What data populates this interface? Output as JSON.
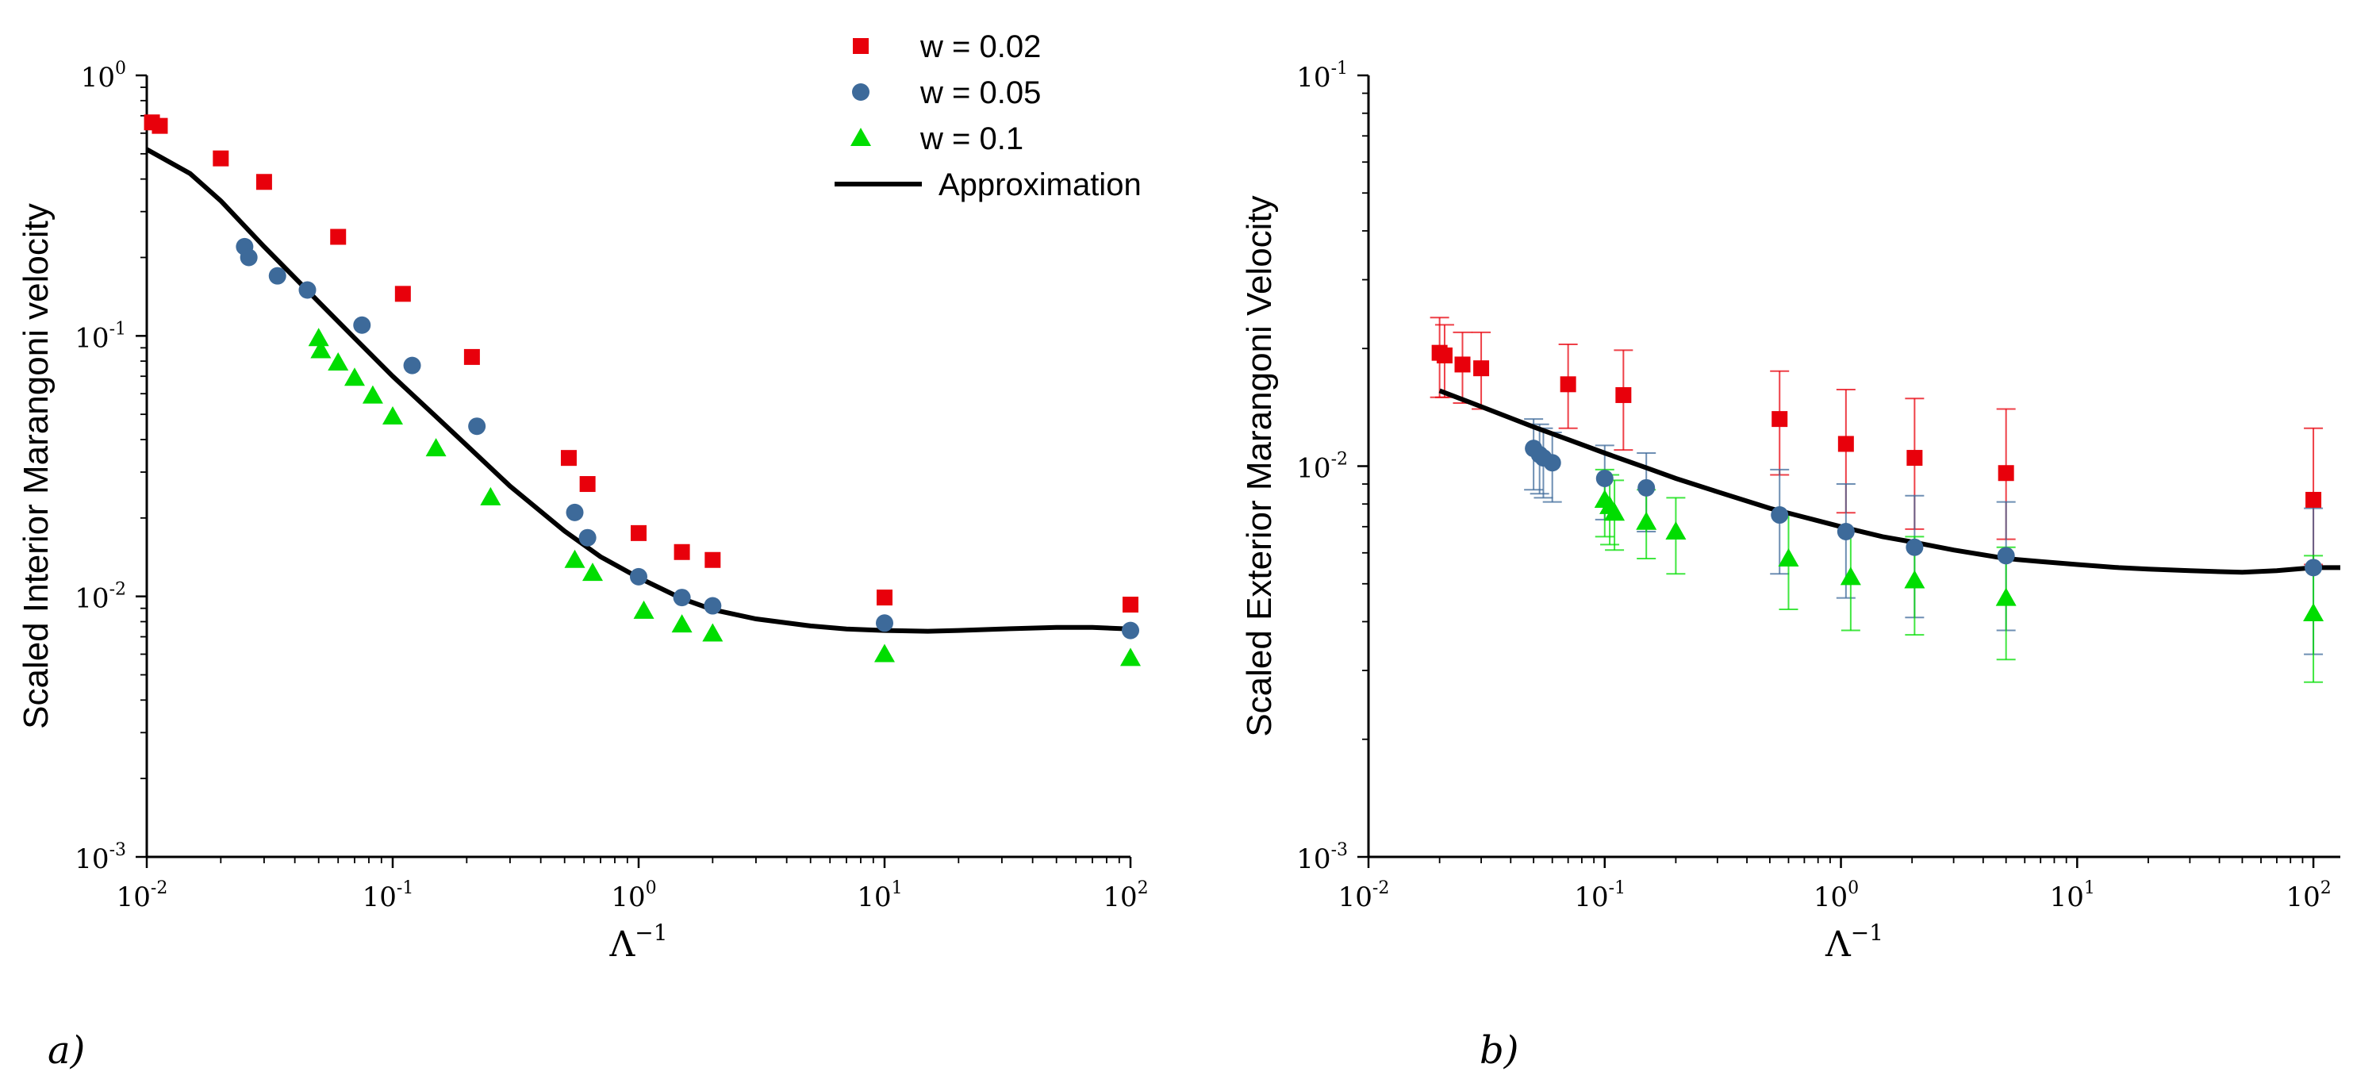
{
  "legend": [
    {
      "label": "w = 0.02",
      "marker": "square",
      "color": "#e8000b"
    },
    {
      "label": "w = 0.05",
      "marker": "circle",
      "color": "#3d6a9a"
    },
    {
      "label": "w = 0.1",
      "marker": "triangle",
      "color": "#00dd00"
    },
    {
      "label": "Approximation",
      "marker": "line",
      "color": "#000000"
    }
  ],
  "chart_data": [
    {
      "type": "scatter",
      "panel_label": "a)",
      "ylabel": "Scaled Interior Marangoni velocity",
      "xlabel": "Λ",
      "xlabel_superscript": "−1",
      "xscale": "log",
      "yscale": "log",
      "xlim": [
        0.01,
        100
      ],
      "ylim": [
        0.001,
        1
      ],
      "xticks": [
        {
          "base": "10",
          "exp": "-2",
          "value": 0.01
        },
        {
          "base": "10",
          "exp": "-1",
          "value": 0.1
        },
        {
          "base": "10",
          "exp": "0",
          "value": 1
        },
        {
          "base": "10",
          "exp": "1",
          "value": 10
        },
        {
          "base": "10",
          "exp": "2",
          "value": 100
        }
      ],
      "yticks": [
        {
          "base": "10",
          "exp": "-3",
          "value": 0.001
        },
        {
          "base": "10",
          "exp": "-2",
          "value": 0.01
        },
        {
          "base": "10",
          "exp": "-1",
          "value": 0.1
        },
        {
          "base": "10",
          "exp": "0",
          "value": 1
        }
      ],
      "series": [
        {
          "name": "w = 0.02",
          "marker": "square",
          "color": "#e8000b",
          "x": [
            0.0105,
            0.0113,
            0.02,
            0.03,
            0.06,
            0.11,
            0.21,
            0.52,
            0.62,
            1.0,
            1.5,
            2.0,
            10,
            100
          ],
          "y": [
            0.66,
            0.64,
            0.48,
            0.39,
            0.24,
            0.145,
            0.083,
            0.034,
            0.027,
            0.0175,
            0.0148,
            0.0138,
            0.0099,
            0.0093
          ]
        },
        {
          "name": "w = 0.05",
          "marker": "circle",
          "color": "#3d6a9a",
          "x": [
            0.025,
            0.026,
            0.034,
            0.045,
            0.075,
            0.12,
            0.22,
            0.55,
            0.62,
            1.0,
            1.5,
            2.0,
            10,
            100
          ],
          "y": [
            0.22,
            0.2,
            0.17,
            0.15,
            0.11,
            0.077,
            0.045,
            0.021,
            0.0168,
            0.0119,
            0.0099,
            0.0092,
            0.0079,
            0.0074
          ]
        },
        {
          "name": "w = 0.1",
          "marker": "triangle",
          "color": "#00dd00",
          "x": [
            0.05,
            0.051,
            0.06,
            0.07,
            0.083,
            0.1,
            0.15,
            0.25,
            0.55,
            0.65,
            1.05,
            1.5,
            2.0,
            10,
            100
          ],
          "y": [
            0.098,
            0.088,
            0.079,
            0.069,
            0.059,
            0.049,
            0.037,
            0.024,
            0.0138,
            0.0123,
            0.0088,
            0.0078,
            0.0072,
            0.006,
            0.0058
          ]
        }
      ],
      "approximation": {
        "x": [
          0.01,
          0.015,
          0.02,
          0.03,
          0.05,
          0.07,
          0.1,
          0.15,
          0.2,
          0.3,
          0.5,
          0.7,
          1.0,
          1.5,
          2.0,
          3.0,
          5.0,
          7.0,
          10,
          15,
          20,
          30,
          50,
          70,
          100
        ],
        "y": [
          0.52,
          0.42,
          0.33,
          0.22,
          0.135,
          0.098,
          0.07,
          0.049,
          0.038,
          0.0265,
          0.0178,
          0.0142,
          0.0118,
          0.0098,
          0.0089,
          0.0082,
          0.0077,
          0.0075,
          0.0074,
          0.00735,
          0.0074,
          0.0075,
          0.0076,
          0.0076,
          0.0075
        ]
      }
    },
    {
      "type": "scatter",
      "panel_label": "b)",
      "ylabel": "Scaled Exterior Marangoni Velocity",
      "xlabel": "Λ",
      "xlabel_superscript": "−1",
      "xscale": "log",
      "yscale": "log",
      "xlim": [
        0.01,
        130
      ],
      "ylim": [
        0.001,
        0.1
      ],
      "xticks": [
        {
          "base": "10",
          "exp": "-2",
          "value": 0.01
        },
        {
          "base": "10",
          "exp": "-1",
          "value": 0.1
        },
        {
          "base": "10",
          "exp": "0",
          "value": 1
        },
        {
          "base": "10",
          "exp": "1",
          "value": 10
        },
        {
          "base": "10",
          "exp": "2",
          "value": 100
        }
      ],
      "yticks": [
        {
          "base": "10",
          "exp": "-3",
          "value": 0.001
        },
        {
          "base": "10",
          "exp": "-2",
          "value": 0.01
        },
        {
          "base": "10",
          "exp": "-1",
          "value": 0.1
        }
      ],
      "series": [
        {
          "name": "w = 0.02",
          "marker": "square",
          "color": "#e8000b",
          "errorbars": true,
          "x": [
            0.02,
            0.021,
            0.025,
            0.03,
            0.07,
            0.12,
            0.55,
            1.05,
            2.05,
            5.0,
            100
          ],
          "y": [
            0.0195,
            0.0192,
            0.0182,
            0.0178,
            0.0162,
            0.0152,
            0.0132,
            0.0114,
            0.0105,
            0.0096,
            0.0082
          ],
          "y_err_low": [
            0.015,
            0.015,
            0.0145,
            0.014,
            0.0125,
            0.011,
            0.0095,
            0.0076,
            0.0069,
            0.0065,
            0.0056
          ],
          "y_err_high": [
            0.024,
            0.023,
            0.022,
            0.022,
            0.0205,
            0.0198,
            0.0175,
            0.0157,
            0.0149,
            0.014,
            0.0125
          ]
        },
        {
          "name": "w = 0.05",
          "marker": "circle",
          "color": "#3d6a9a",
          "errorbars": true,
          "x": [
            0.05,
            0.053,
            0.055,
            0.06,
            0.1,
            0.15,
            0.55,
            1.05,
            2.05,
            5.0,
            100
          ],
          "y": [
            0.0111,
            0.0107,
            0.0105,
            0.0102,
            0.0093,
            0.0088,
            0.0075,
            0.0068,
            0.0062,
            0.0059,
            0.0055
          ],
          "y_err_low": [
            0.0087,
            0.0085,
            0.0083,
            0.0081,
            0.0073,
            0.0068,
            0.0053,
            0.0046,
            0.0041,
            0.0038,
            0.0033
          ],
          "y_err_high": [
            0.0132,
            0.0128,
            0.0125,
            0.0122,
            0.0113,
            0.0108,
            0.0098,
            0.009,
            0.0084,
            0.0081,
            0.0078
          ]
        },
        {
          "name": "w = 0.1",
          "marker": "triangle",
          "color": "#00dd00",
          "errorbars": true,
          "x": [
            0.1,
            0.105,
            0.11,
            0.15,
            0.2,
            0.6,
            1.1,
            2.05,
            5.0,
            100
          ],
          "y": [
            0.0082,
            0.0079,
            0.0076,
            0.0072,
            0.0068,
            0.0058,
            0.0052,
            0.0051,
            0.0046,
            0.0042
          ],
          "y_err_low": [
            0.0066,
            0.0063,
            0.0061,
            0.0058,
            0.0053,
            0.0043,
            0.0038,
            0.0037,
            0.0032,
            0.0028
          ],
          "y_err_high": [
            0.0098,
            0.0095,
            0.0092,
            0.0087,
            0.0083,
            0.0075,
            0.0068,
            0.0066,
            0.0062,
            0.0059
          ]
        }
      ],
      "approximation": {
        "x": [
          0.02,
          0.03,
          0.05,
          0.07,
          0.1,
          0.15,
          0.2,
          0.3,
          0.5,
          0.7,
          1.0,
          1.5,
          2.0,
          3.0,
          5.0,
          7.0,
          10,
          15,
          20,
          30,
          50,
          70,
          100,
          130
        ],
        "y": [
          0.0156,
          0.0142,
          0.0126,
          0.0117,
          0.0108,
          0.0099,
          0.0093,
          0.0086,
          0.0078,
          0.0074,
          0.007,
          0.0066,
          0.0064,
          0.0061,
          0.0058,
          0.0057,
          0.0056,
          0.0055,
          0.00545,
          0.0054,
          0.00535,
          0.0054,
          0.0055,
          0.0055
        ]
      }
    }
  ]
}
